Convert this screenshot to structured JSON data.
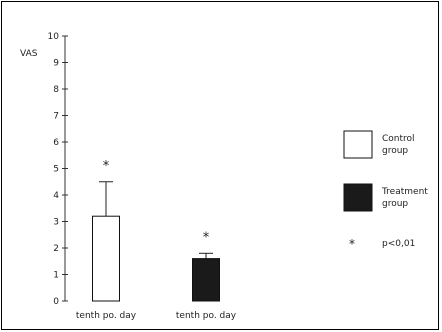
{
  "chart_data": {
    "type": "bar",
    "ylabel": "VAS",
    "ylim": [
      0,
      10
    ],
    "yticks": [
      "0",
      "1",
      "2",
      "3",
      "4",
      "5",
      "6",
      "7",
      "8",
      "9",
      "10"
    ],
    "categories": [
      "tenth po. day",
      "tenth po. day"
    ],
    "series": [
      {
        "name": "Control group",
        "value": 3.2,
        "error_plus": 1.3,
        "fill": "#ffffff",
        "significance": "*"
      },
      {
        "name": "Treatment group",
        "value": 1.6,
        "error_plus": 0.2,
        "fill": "#1a1a1a",
        "significance": "*"
      }
    ],
    "legend": {
      "placement": "right",
      "items": [
        {
          "line1": "Control",
          "line2": "group",
          "fill": "#ffffff"
        },
        {
          "line1": "Treatment",
          "line2": "group",
          "fill": "#1a1a1a"
        }
      ],
      "significance_symbol": "*",
      "significance_text": "p<0,01"
    }
  }
}
